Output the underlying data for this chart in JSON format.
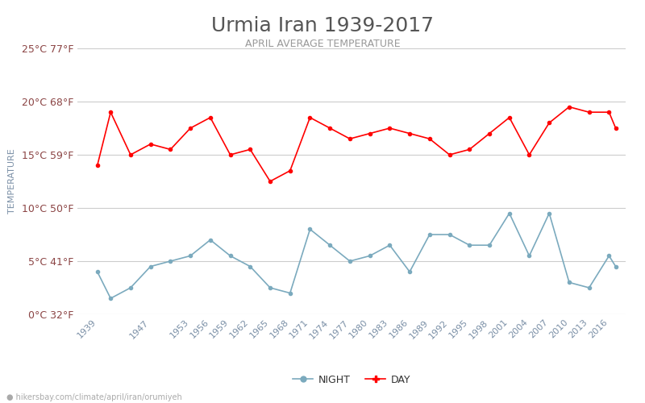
{
  "title": "Urmia Iran 1939-2017",
  "subtitle": "APRIL AVERAGE TEMPERATURE",
  "ylabel": "TEMPERATURE",
  "footer": "hikersbay.com/climate/april/iran/orumiyeh",
  "yticks_celsius": [
    0,
    5,
    10,
    15,
    20,
    25
  ],
  "yticks_labels": [
    "0°C 32°F",
    "5°C 41°F",
    "10°C 50°F",
    "15°C 59°F",
    "20°C 68°F",
    "25°C 77°F"
  ],
  "years": [
    1939,
    1941,
    1944,
    1947,
    1950,
    1953,
    1956,
    1959,
    1962,
    1965,
    1968,
    1971,
    1974,
    1977,
    1980,
    1983,
    1986,
    1989,
    1992,
    1995,
    1998,
    2001,
    2004,
    2007,
    2010,
    2013,
    2016,
    2017
  ],
  "day_temps": [
    14.0,
    19.0,
    15.0,
    16.0,
    15.5,
    17.5,
    18.5,
    15.0,
    15.5,
    12.5,
    13.5,
    18.5,
    17.5,
    16.5,
    17.0,
    17.5,
    17.0,
    16.5,
    15.0,
    15.5,
    17.0,
    18.5,
    15.0,
    18.0,
    19.5,
    19.0,
    19.0,
    17.5
  ],
  "night_temps": [
    4.0,
    1.5,
    2.5,
    4.5,
    5.0,
    5.5,
    7.0,
    5.5,
    4.5,
    2.5,
    2.0,
    8.0,
    6.5,
    5.0,
    5.5,
    6.5,
    4.0,
    7.5,
    7.5,
    6.5,
    6.5,
    9.5,
    5.5,
    9.5,
    3.0,
    2.5,
    5.5,
    4.5
  ],
  "xtick_years": [
    1939,
    1947,
    1953,
    1956,
    1959,
    1962,
    1965,
    1968,
    1971,
    1974,
    1977,
    1980,
    1983,
    1986,
    1989,
    1992,
    1995,
    1998,
    2001,
    2004,
    2007,
    2010,
    2013,
    2016
  ],
  "day_color": "#ff0000",
  "night_color": "#7baabe",
  "title_color": "#555555",
  "subtitle_color": "#999999",
  "ylabel_color": "#7a8fa6",
  "ytick_color": "#8b4444",
  "xtick_color": "#7a8fa6",
  "grid_color": "#cccccc",
  "bg_color": "#ffffff",
  "footer_color": "#aaaaaa",
  "ylim": [
    0,
    25
  ],
  "title_fontsize": 18,
  "subtitle_fontsize": 9,
  "ylabel_fontsize": 8,
  "ytick_fontsize": 9,
  "xtick_fontsize": 8,
  "legend_fontsize": 9
}
